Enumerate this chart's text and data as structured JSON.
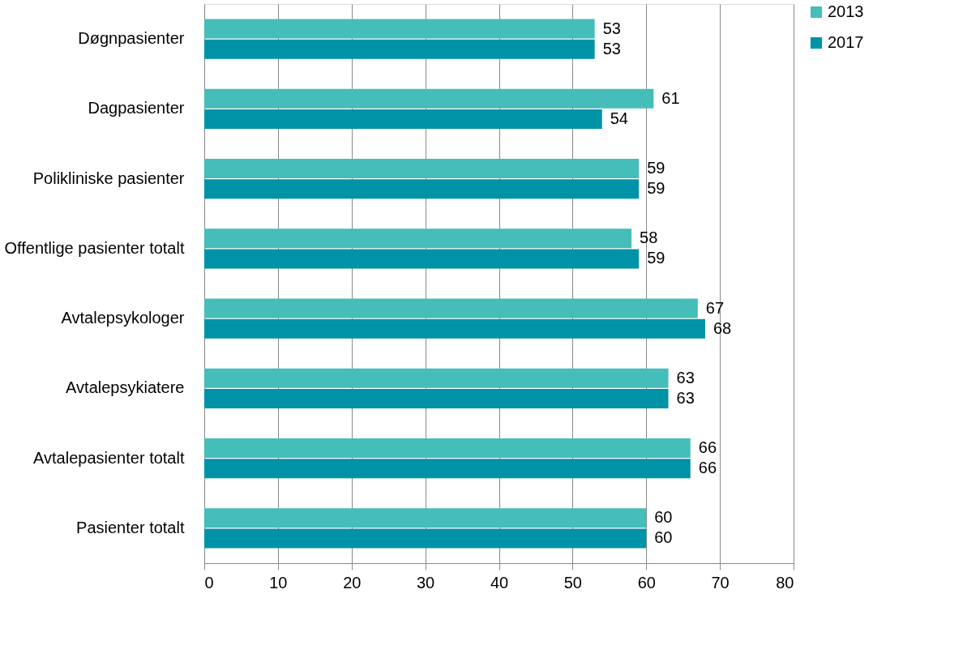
{
  "chart_data": {
    "type": "bar",
    "orientation": "horizontal",
    "categories": [
      "Døgnpasienter",
      "Dagpasienter",
      "Polikliniske pasienter",
      "Offentlige pasienter totalt",
      "Avtalepsykologer",
      "Avtalepsykiatere",
      "Avtalepasienter totalt",
      "Pasienter totalt"
    ],
    "series": [
      {
        "name": "2013",
        "color": "#45bdb8",
        "values": [
          53,
          61,
          59,
          58,
          67,
          63,
          66,
          60
        ]
      },
      {
        "name": "2017",
        "color": "#0093a8",
        "values": [
          53,
          54,
          59,
          59,
          68,
          63,
          66,
          60
        ]
      }
    ],
    "xlim": [
      0,
      80
    ],
    "xticks": [
      0,
      10,
      20,
      30,
      40,
      50,
      60,
      70,
      80
    ],
    "grid": "x",
    "legend": "right",
    "data_labels": true
  }
}
